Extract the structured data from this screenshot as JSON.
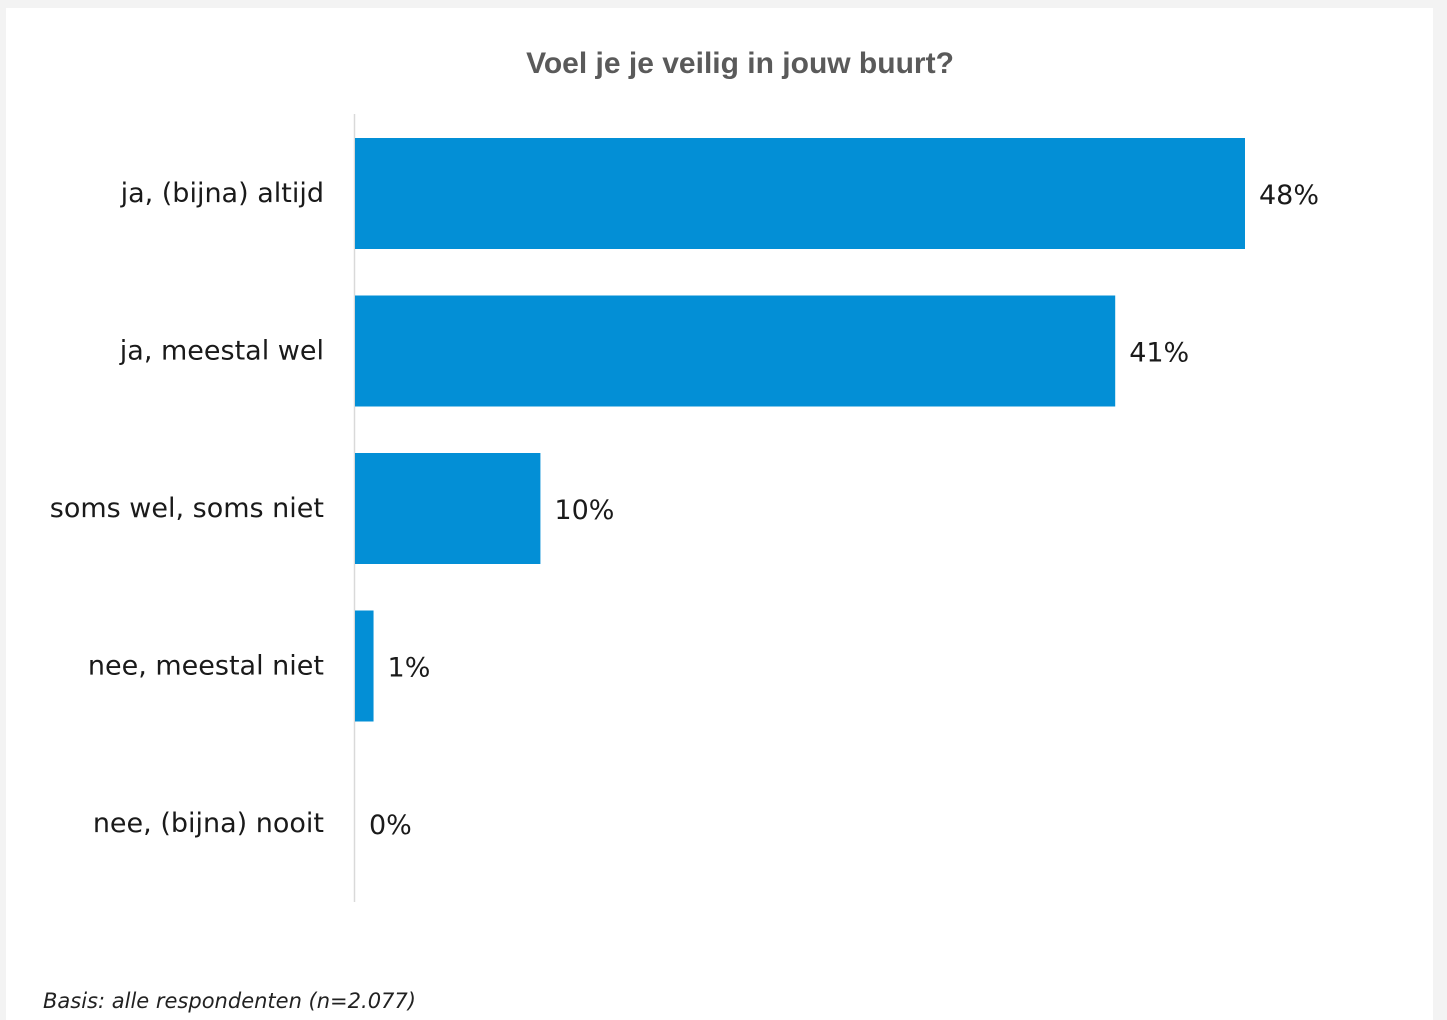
{
  "chart_data": {
    "type": "bar",
    "orientation": "horizontal",
    "title": "Voel je je veilig in jouw buurt?",
    "categories": [
      "ja, (bijna) altijd",
      "ja, meestal wel",
      "soms wel, soms niet",
      "nee, meestal niet",
      "nee, (bijna) nooit"
    ],
    "values": [
      48,
      41,
      10,
      1,
      0
    ],
    "value_labels": [
      "48%",
      "41%",
      "10%",
      "1%",
      "0%"
    ],
    "xlim": [
      0,
      48
    ],
    "bar_color": "#038fd6",
    "grid": false,
    "legend": "none",
    "footnote": "Basis: alle respondenten (n=2.077)"
  }
}
